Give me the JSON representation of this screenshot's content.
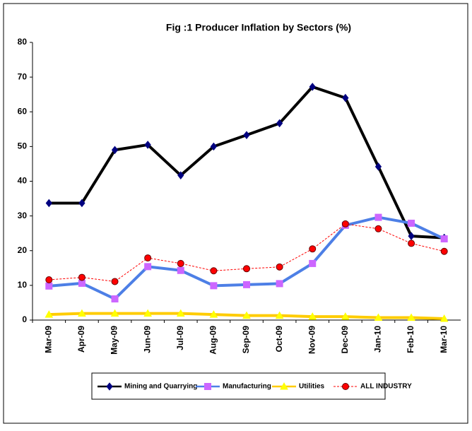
{
  "chart_data": {
    "type": "line",
    "title": "Fig :1 Producer Inflation by Sectors (%)",
    "categories": [
      "Mar-09",
      "Apr-09",
      "May-09",
      "Jun-09",
      "Jul-09",
      "Aug-09",
      "Sep-09",
      "Oct-09",
      "Nov-09",
      "Dec-09",
      "Jan-10",
      "Feb-10",
      "Mar-10"
    ],
    "series": [
      {
        "name": "Mining and Quarrying",
        "color": "#000000",
        "marker_color": "#000080",
        "marker": "diamond",
        "dash": false,
        "width": 4,
        "values": [
          33.7,
          33.7,
          49,
          50.5,
          41.7,
          50,
          53.3,
          56.7,
          67.2,
          64,
          44.2,
          24.2,
          23.7
        ]
      },
      {
        "name": "Manufacturing",
        "color": "#4d7fe6",
        "marker_color": "#cc66ff",
        "marker": "square",
        "dash": false,
        "width": 4,
        "values": [
          9.8,
          10.6,
          6.1,
          15.4,
          14.3,
          9.9,
          10.2,
          10.5,
          16.3,
          27.3,
          29.6,
          27.9,
          23.4
        ]
      },
      {
        "name": "Utilities",
        "color": "#ffcc00",
        "marker_color": "#ffff00",
        "marker": "triangle",
        "dash": false,
        "width": 4,
        "values": [
          1.6,
          1.9,
          1.9,
          1.9,
          1.9,
          1.6,
          1.3,
          1.3,
          1.0,
          1.0,
          0.7,
          0.7,
          0.4
        ]
      },
      {
        "name": "ALL INDUSTRY",
        "color": "#ff0000",
        "marker_color": "#ff0000",
        "marker": "circle",
        "dash": true,
        "width": 1,
        "values": [
          11.6,
          12.3,
          11.1,
          17.9,
          16.3,
          14.2,
          14.8,
          15.3,
          20.5,
          27.7,
          26.3,
          22.1,
          19.8
        ]
      }
    ],
    "ylim": [
      0,
      80
    ],
    "yticks": [
      0,
      10,
      20,
      30,
      40,
      50,
      60,
      70,
      80
    ],
    "legend": "bottom"
  }
}
